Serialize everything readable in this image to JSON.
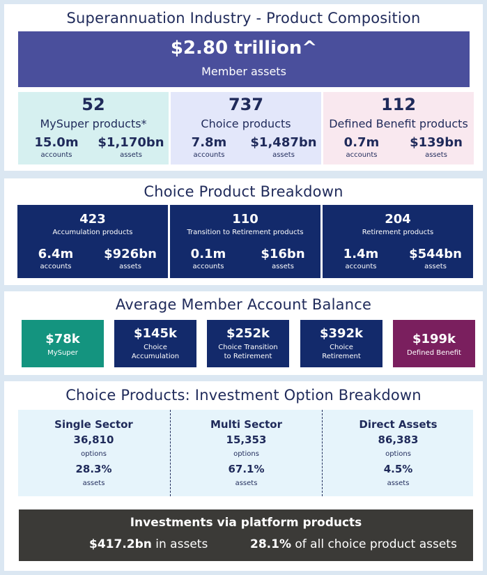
{
  "composition": {
    "title": "Superannuation Industry - Product Composition",
    "member_assets_value": "$2.80 trillion^",
    "member_assets_label": "Member assets",
    "products": [
      {
        "count": "52",
        "label": "MySuper products*",
        "accounts_value": "15.0m",
        "accounts_label": "accounts",
        "assets_value": "$1,170bn",
        "assets_label": "assets",
        "bg": "#d6f0f0"
      },
      {
        "count": "737",
        "label": "Choice products",
        "accounts_value": "7.8m",
        "accounts_label": "accounts",
        "assets_value": "$1,487bn",
        "assets_label": "assets",
        "bg": "#e3e7fa"
      },
      {
        "count": "112",
        "label": "Defined Benefit products",
        "accounts_value": "0.7m",
        "accounts_label": "accounts",
        "assets_value": "$139bn",
        "assets_label": "assets",
        "bg": "#f9e8ef"
      }
    ]
  },
  "choice_breakdown": {
    "title": "Choice Product Breakdown",
    "items": [
      {
        "count": "423",
        "label": "Accumulation products",
        "accounts_value": "6.4m",
        "accounts_label": "accounts",
        "assets_value": "$926bn",
        "assets_label": "assets"
      },
      {
        "count": "110",
        "label": "Transition to Retirement products",
        "accounts_value": "0.1m",
        "accounts_label": "accounts",
        "assets_value": "$16bn",
        "assets_label": "assets"
      },
      {
        "count": "204",
        "label": "Retirement products",
        "accounts_value": "1.4m",
        "accounts_label": "accounts",
        "assets_value": "$544bn",
        "assets_label": "assets"
      }
    ]
  },
  "average_balance": {
    "title": "Average Member Account Balance",
    "items": [
      {
        "value": "$78k",
        "line1": "MySuper",
        "line2": "",
        "color": "#14947f"
      },
      {
        "value": "$145k",
        "line1": "Choice",
        "line2": "Accumulation",
        "color": "#132a6b"
      },
      {
        "value": "$252k",
        "line1": "Choice Transition",
        "line2": "to Retirement",
        "color": "#132a6b"
      },
      {
        "value": "$392k",
        "line1": "Choice",
        "line2": "Retirement",
        "color": "#132a6b"
      },
      {
        "value": "$199k",
        "line1": "Defined Benefit",
        "line2": "",
        "color": "#7a1f5e"
      }
    ]
  },
  "investment": {
    "title": "Choice Products: Investment Option Breakdown",
    "columns": [
      {
        "heading": "Single Sector",
        "options_value": "36,810",
        "options_label": "options",
        "assets_value": "28.3%",
        "assets_label": "assets"
      },
      {
        "heading": "Multi Sector",
        "options_value": "15,353",
        "options_label": "options",
        "assets_value": "67.1%",
        "assets_label": "assets"
      },
      {
        "heading": "Direct Assets",
        "options_value": "86,383",
        "options_label": "options",
        "assets_value": "4.5%",
        "assets_label": "assets"
      }
    ],
    "platform": {
      "title": "Investments via platform products",
      "assets_value": "$417.2bn",
      "assets_suffix": "in assets",
      "share_value": "28.1%",
      "share_suffix": "of all choice product assets"
    }
  }
}
